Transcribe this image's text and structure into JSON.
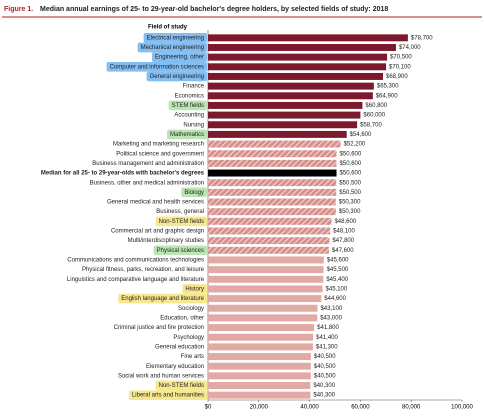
{
  "chart_data": {
    "type": "bar",
    "orientation": "horizontal",
    "figure_label": "Figure 1.",
    "title": "Median annual earnings of 25- to 29-year-old bachelor's degree holders, by selected fields of study: 2018",
    "category_header": "Field of study",
    "categories": [
      "Electrical engineering",
      "Mechanical engineering",
      "Engineering, other",
      "Computer and information sciences",
      "General engineering",
      "Finance",
      "Economics",
      "STEM fields",
      "Accounting",
      "Nursing",
      "Mathematics",
      "Marketing and marketing research",
      "Political science and government",
      "Business management and administration",
      "Median for all 25- to 29-year-olds with bachelor's degrees",
      "Business, other and medical administration",
      "Biology",
      "General medical and health services",
      "Business, general",
      "Non-STEM fields",
      "Commercial art and graphic design",
      "Multi/interdisciplinary studies",
      "Physical sciences",
      "Communications and communications technologies",
      "Physical fitness, parks, recreation, and leisure",
      "Linguistics and comparative language and literature",
      "History",
      "English language and literature",
      "Sociology",
      "Education, other",
      "Criminal justice and fire protection",
      "Psychology",
      "General education",
      "Fine arts",
      "Elementary education",
      "Social work and human services",
      "Non-STEM fields",
      "Liberal arts and humanities"
    ],
    "values": [
      78700,
      74000,
      70500,
      70100,
      68900,
      65300,
      64900,
      60800,
      60000,
      58700,
      54600,
      52200,
      50600,
      50600,
      50600,
      50500,
      50500,
      50300,
      50300,
      48600,
      48100,
      47800,
      47600,
      45600,
      45500,
      45400,
      45100,
      44600,
      43100,
      43000,
      41800,
      41400,
      41300,
      40500,
      40500,
      40500,
      40300,
      40300
    ],
    "value_labels": [
      "$78,700",
      "$74,000",
      "$70,500",
      "$70,100",
      "$68,900",
      "$65,300",
      "$64,900",
      "$60,800",
      "$60,000",
      "$58,700",
      "$54,600",
      "$52,200",
      "$50,600",
      "$50,600",
      "$50,600",
      "$50,500",
      "$50,500",
      "$50,300",
      "$50,300",
      "$48,600",
      "$48,100",
      "$47,800",
      "$47,600",
      "$45,600",
      "$45,500",
      "$45,400",
      "$45,100",
      "$44,600",
      "$43,100",
      "$43,000",
      "$41,800",
      "$41,400",
      "$41,300",
      "$40,500",
      "$40,500",
      "$40,500",
      "$40,300",
      "$40,300"
    ],
    "bar_colors": [
      "#7b1a2d",
      "#7b1a2d",
      "#7b1a2d",
      "#7b1a2d",
      "#7b1a2d",
      "#7b1a2d",
      "#7b1a2d",
      "#7b1a2d",
      "#7b1a2d",
      "#7b1a2d",
      "#7b1a2d",
      "#d7918c",
      "#d7918c",
      "#d7918c",
      "#000000",
      "#d7918c",
      "#d7918c",
      "#d7918c",
      "#d7918c",
      "#d7918c",
      "#d7918c",
      "#d7918c",
      "#d7918c",
      "#e2aaa5",
      "#e2aaa5",
      "#e2aaa5",
      "#e2aaa5",
      "#e2aaa5",
      "#e2aaa5",
      "#e2aaa5",
      "#e2aaa5",
      "#e2aaa5",
      "#e2aaa5",
      "#e2aaa5",
      "#e2aaa5",
      "#e2aaa5",
      "#e2aaa5",
      "#e2aaa5"
    ],
    "hatched": [
      false,
      false,
      false,
      false,
      false,
      false,
      false,
      false,
      false,
      false,
      false,
      true,
      true,
      true,
      false,
      true,
      true,
      true,
      true,
      true,
      true,
      true,
      true,
      false,
      false,
      false,
      false,
      false,
      false,
      false,
      false,
      false,
      false,
      false,
      false,
      false,
      false,
      false
    ],
    "highlights": [
      "#5aa8ee",
      "#5aa8ee",
      "#5aa8ee",
      "#5aa8ee",
      "#5aa8ee",
      null,
      null,
      "#a6dc9a",
      null,
      null,
      "#a6dc9a",
      null,
      null,
      null,
      null,
      null,
      "#a6dc9a",
      null,
      null,
      "#f4e06a",
      null,
      null,
      "#a6dc9a",
      null,
      null,
      null,
      "#f4e06a",
      "#f4e06a",
      null,
      null,
      null,
      null,
      null,
      null,
      null,
      null,
      "#f4e06a",
      "#f4e06a"
    ],
    "xlim": [
      0,
      100000
    ],
    "xticks": [
      {
        "value": 0,
        "label": "$0"
      },
      {
        "value": 20000,
        "label": "20,000"
      },
      {
        "value": 40000,
        "label": "40,000"
      },
      {
        "value": 60000,
        "label": "60,000"
      },
      {
        "value": 80000,
        "label": "80,000"
      },
      {
        "value": 100000,
        "label": "100,000"
      }
    ]
  }
}
